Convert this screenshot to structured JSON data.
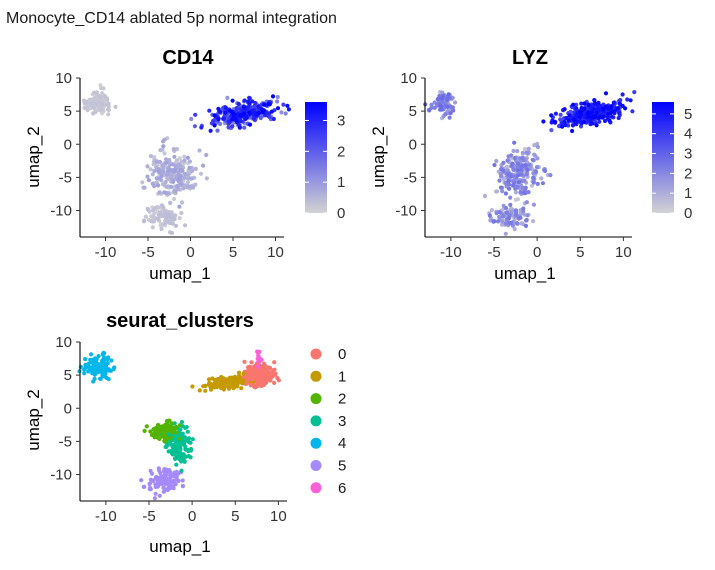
{
  "figure_title": "Monocyte_CD14 ablated 5p normal integration",
  "chart_data": [
    {
      "type": "scatter",
      "title": "CD14",
      "xlabel": "umap_1",
      "ylabel": "umap_2",
      "xlim": [
        -13,
        11
      ],
      "ylim": [
        -14,
        10
      ],
      "xticks": [
        -10,
        -5,
        0,
        5,
        10
      ],
      "yticks": [
        -10,
        -5,
        0,
        5,
        10
      ],
      "color_scale": {
        "low": "#d3d3d3",
        "high": "#0000ff",
        "min": 0,
        "max": 3.6,
        "ticks": [
          0,
          1,
          2,
          3
        ]
      },
      "groups": [
        {
          "name": "top-left",
          "cx": -10.9,
          "cy": 6.3,
          "sx": 0.75,
          "sy": 0.9,
          "n": 90,
          "value": [
            0,
            0.3
          ]
        },
        {
          "name": "right",
          "cx": 6.3,
          "cy": 4.7,
          "sx": 2.0,
          "sy": 0.8,
          "n": 320,
          "value": [
            0.8,
            3.6
          ],
          "tilt": 0.25
        },
        {
          "name": "center",
          "cx": -2.2,
          "cy": -4.5,
          "sx": 1.3,
          "sy": 1.8,
          "n": 220,
          "value": [
            0,
            0.9
          ]
        },
        {
          "name": "bottom",
          "cx": -3.2,
          "cy": -11.0,
          "sx": 1.1,
          "sy": 0.9,
          "n": 90,
          "value": [
            0,
            0.4
          ]
        }
      ]
    },
    {
      "type": "scatter",
      "title": "LYZ",
      "xlabel": "umap_1",
      "ylabel": "umap_2",
      "xlim": [
        -13,
        11
      ],
      "ylim": [
        -14,
        10
      ],
      "xticks": [
        -10,
        -5,
        0,
        5,
        10
      ],
      "yticks": [
        -10,
        -5,
        0,
        5,
        10
      ],
      "color_scale": {
        "low": "#d3d3d3",
        "high": "#0000ff",
        "min": 0,
        "max": 5.6,
        "ticks": [
          0,
          1,
          2,
          3,
          4,
          5
        ]
      },
      "groups": [
        {
          "name": "top-left",
          "cx": -10.9,
          "cy": 6.3,
          "sx": 0.75,
          "sy": 0.9,
          "n": 90,
          "value": [
            0.5,
            2.8
          ]
        },
        {
          "name": "right",
          "cx": 6.3,
          "cy": 4.7,
          "sx": 2.0,
          "sy": 0.8,
          "n": 320,
          "value": [
            3.0,
            5.6
          ],
          "tilt": 0.25
        },
        {
          "name": "center",
          "cx": -2.2,
          "cy": -4.5,
          "sx": 1.3,
          "sy": 1.8,
          "n": 220,
          "value": [
            0.2,
            2.6
          ]
        },
        {
          "name": "bottom",
          "cx": -3.2,
          "cy": -11.0,
          "sx": 1.1,
          "sy": 0.9,
          "n": 90,
          "value": [
            0.4,
            2.5
          ]
        }
      ]
    },
    {
      "type": "scatter",
      "title": "seurat_clusters",
      "xlabel": "umap_1",
      "ylabel": "umap_2",
      "xlim": [
        -13,
        11
      ],
      "ylim": [
        -14,
        10
      ],
      "xticks": [
        -10,
        -5,
        0,
        5,
        10
      ],
      "yticks": [
        -10,
        -5,
        0,
        5,
        10
      ],
      "legend": [
        "0",
        "1",
        "2",
        "3",
        "4",
        "5",
        "6"
      ],
      "palette": [
        "#f8766d",
        "#c49a00",
        "#53b400",
        "#00c094",
        "#00b6eb",
        "#a58aff",
        "#fb61d7"
      ],
      "groups": [
        {
          "cluster": 0,
          "cx": 7.9,
          "cy": 5.0,
          "sx": 0.9,
          "sy": 0.7,
          "n": 260
        },
        {
          "cluster": 1,
          "cx": 4.2,
          "cy": 3.9,
          "sx": 1.3,
          "sy": 0.45,
          "n": 200,
          "tilt": 0.2
        },
        {
          "cluster": 2,
          "cx": -3.3,
          "cy": -3.6,
          "sx": 0.9,
          "sy": 0.55,
          "n": 120
        },
        {
          "cluster": 3,
          "cx": -1.6,
          "cy": -5.5,
          "sx": 0.7,
          "sy": 1.6,
          "n": 150
        },
        {
          "cluster": 4,
          "cx": -10.9,
          "cy": 6.3,
          "sx": 0.7,
          "sy": 0.85,
          "n": 110
        },
        {
          "cluster": 5,
          "cx": -3.1,
          "cy": -11.0,
          "sx": 1.0,
          "sy": 0.85,
          "n": 110
        },
        {
          "cluster": 6,
          "cx": 7.7,
          "cy": 7.3,
          "sx": 0.12,
          "sy": 0.8,
          "n": 18
        }
      ]
    }
  ]
}
